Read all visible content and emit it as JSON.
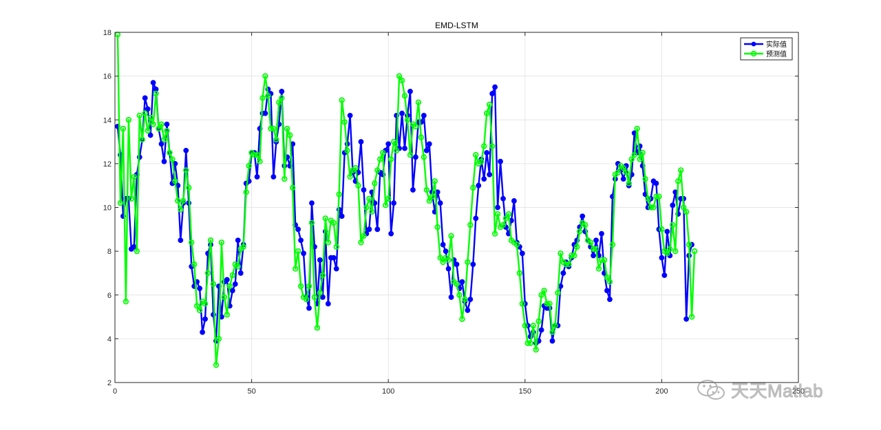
{
  "chart_data": {
    "type": "line",
    "title": "EMD-LSTM",
    "xlabel": "",
    "ylabel": "",
    "xlim": [
      0,
      250
    ],
    "ylim": [
      2,
      18
    ],
    "xticks": [
      0,
      50,
      100,
      150,
      200,
      250
    ],
    "yticks": [
      2,
      4,
      6,
      8,
      10,
      12,
      14,
      16,
      18
    ],
    "grid": true,
    "legend_position": "top-right",
    "series": [
      {
        "name": "实际值",
        "color": "#0000ff",
        "marker": "filled-circle",
        "values": [
          13.7,
          12.4,
          9.6,
          10.4,
          10.4,
          8.1,
          8.2,
          11.5,
          12.3,
          13.1,
          15.0,
          14.5,
          13.3,
          15.7,
          15.4,
          13.6,
          12.9,
          12.1,
          13.8,
          12.5,
          11.1,
          12.0,
          11.0,
          8.5,
          10.2,
          12.6,
          10.2,
          7.3,
          6.4,
          6.6,
          6.3,
          4.3,
          4.9,
          7.9,
          8.3,
          5.1,
          3.9,
          6.4,
          5.0,
          6.6,
          6.7,
          5.5,
          6.2,
          6.5,
          8.5,
          7.0,
          8.3,
          11.1,
          11.2,
          12.5,
          12.5,
          11.4,
          13.6,
          14.3,
          14.3,
          15.4,
          15.2,
          11.4,
          13.0,
          13.8,
          15.3,
          11.9,
          12.3,
          11.9,
          12.9,
          9.2,
          9.0,
          8.5,
          7.9,
          5.9,
          5.4,
          10.2,
          8.2,
          5.6,
          7.6,
          5.9,
          8.9,
          5.6,
          7.7,
          7.7,
          7.2,
          9.9,
          9.6,
          12.5,
          12.9,
          14.2,
          11.6,
          11.2,
          11.6,
          13.0,
          10.8,
          8.8,
          9.0,
          10.7,
          10.2,
          9.0,
          11.6,
          11.5,
          12.6,
          12.9,
          8.8,
          10.2,
          14.2,
          12.7,
          14.3,
          12.7,
          14.2,
          15.3,
          10.8,
          12.3,
          13.9,
          13.9,
          14.2,
          12.6,
          12.9,
          10.7,
          9.8,
          10.7,
          10.2,
          8.3,
          8.0,
          7.2,
          5.9,
          7.6,
          7.4,
          6.3,
          6.6,
          5.7,
          5.3,
          5.8,
          7.4,
          9.5,
          11.0,
          12.2,
          11.3,
          12.5,
          11.5,
          15.2,
          15.5,
          10.0,
          12.1,
          10.4,
          9.1,
          8.8,
          9.4,
          10.3,
          8.4,
          8.2,
          7.9,
          5.6,
          4.6,
          4.1,
          4.3,
          3.8,
          3.9,
          4.4,
          5.5,
          5.4,
          5.4,
          3.9,
          4.6,
          4.6,
          6.4,
          7.0,
          7.5,
          7.3,
          7.7,
          8.3,
          8.5,
          9.1,
          9.6,
          8.9,
          8.5,
          8.2,
          7.8,
          8.5,
          7.8,
          8.8,
          7.0,
          6.2,
          5.8,
          10.5,
          11.3,
          12.0,
          11.7,
          11.3,
          11.9,
          11.0,
          11.5,
          13.4,
          12.5,
          12.8,
          11.9,
          10.6,
          10.0,
          10.4,
          11.2,
          11.1,
          9.0,
          7.7,
          6.9,
          8.9,
          7.8,
          10.1,
          10.7,
          9.7,
          10.4,
          10.4,
          4.9,
          7.8,
          8.3
        ]
      },
      {
        "name": "预测值",
        "color": "#00ff00",
        "marker": "open-circle",
        "values": [
          17.9,
          10.2,
          13.6,
          5.7,
          14.0,
          10.4,
          11.4,
          8.0,
          14.2,
          13.1,
          14.3,
          13.5,
          14.1,
          13.8,
          15.2,
          13.6,
          13.8,
          13.1,
          13.5,
          12.5,
          12.2,
          11.2,
          10.3,
          9.9,
          10.3,
          11.7,
          10.9,
          8.4,
          7.4,
          5.5,
          5.3,
          5.7,
          5.6,
          7.0,
          8.5,
          6.5,
          2.8,
          4.0,
          8.4,
          5.9,
          5.1,
          6.4,
          6.9,
          7.4,
          7.3,
          8.1,
          8.2,
          10.7,
          11.9,
          12.5,
          12.4,
          12.4,
          12.1,
          15.0,
          16.0,
          15.1,
          13.6,
          13.6,
          13.1,
          14.8,
          15.0,
          11.3,
          13.6,
          13.3,
          10.9,
          7.2,
          8.0,
          6.4,
          5.9,
          5.8,
          6.4,
          9.3,
          5.9,
          4.5,
          6.1,
          6.9,
          9.5,
          8.4,
          9.4,
          9.3,
          8.2,
          10.6,
          14.9,
          13.9,
          12.6,
          11.4,
          11.7,
          11.8,
          11.0,
          8.4,
          8.7,
          10.0,
          10.4,
          9.8,
          11.1,
          11.7,
          12.2,
          12.5,
          10.1,
          10.4,
          12.2,
          13.0,
          12.6,
          16.0,
          15.8,
          15.1,
          14.0,
          12.4,
          13.8,
          13.7,
          14.8,
          13.2,
          12.3,
          10.8,
          10.3,
          10.5,
          11.2,
          9.1,
          7.7,
          7.5,
          7.7,
          7.6,
          8.7,
          6.6,
          6.5,
          6.0,
          4.9,
          5.8,
          7.5,
          9.2,
          10.9,
          12.4,
          12.0,
          12.1,
          12.8,
          14.3,
          14.7,
          12.8,
          8.8,
          9.7,
          9.1,
          9.2,
          9.5,
          9.7,
          8.5,
          8.4,
          8.3,
          7.0,
          5.6,
          4.6,
          3.8,
          3.8,
          4.6,
          3.5,
          4.8,
          6.0,
          6.2,
          5.6,
          5.6,
          4.3,
          4.6,
          6.1,
          7.9,
          7.5,
          7.4,
          7.4,
          7.8,
          7.8,
          8.2,
          8.9,
          9.3,
          9.2,
          8.5,
          8.4,
          8.1,
          8.1,
          7.2,
          7.6,
          7.6,
          6.8,
          6.6,
          8.3,
          11.5,
          11.6,
          11.9,
          11.8,
          11.6,
          11.1,
          12.2,
          12.4,
          13.6,
          12.2,
          12.5,
          11.3,
          10.4,
          10.0,
          10.0,
          10.5,
          10.5,
          9.0,
          8.0,
          7.9,
          8.1,
          9.2,
          8.0,
          11.2,
          11.7,
          10.0,
          9.8,
          8.3,
          5.0,
          8.0
        ]
      }
    ]
  },
  "watermark": {
    "text": "天天Matlab",
    "icon": "wechat-icon"
  }
}
